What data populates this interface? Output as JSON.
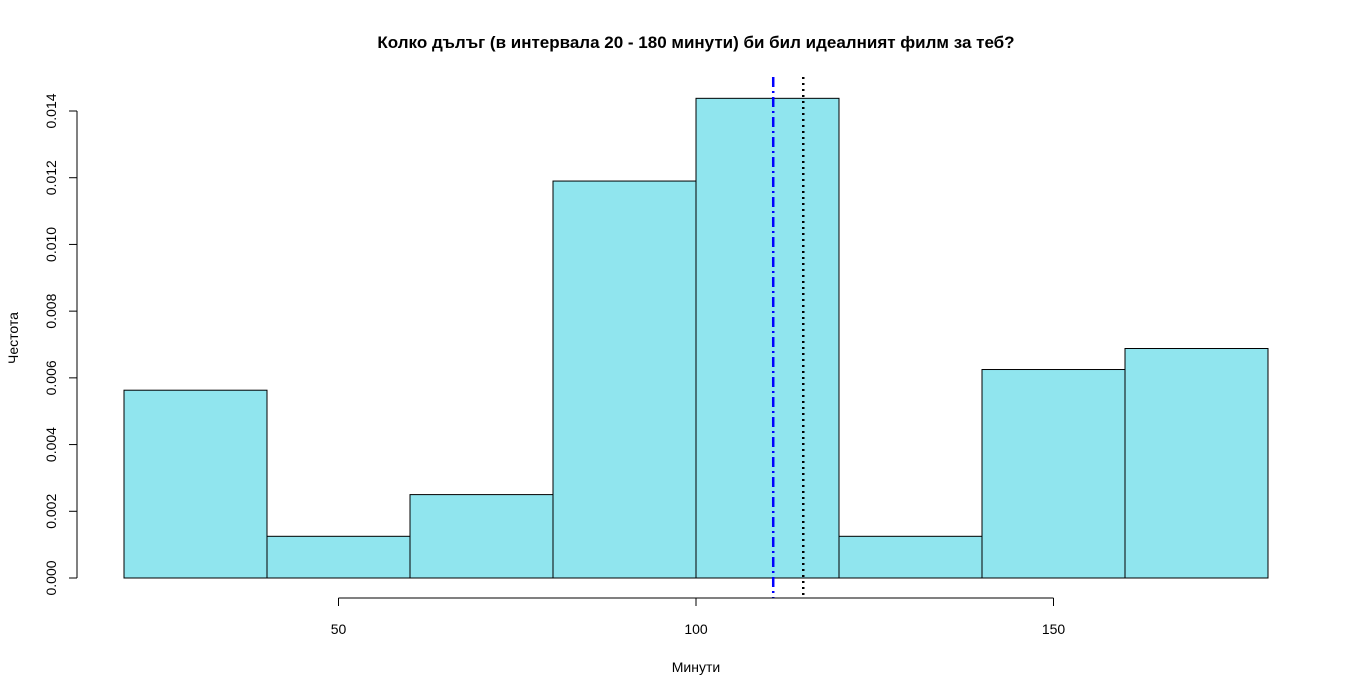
{
  "chart_data": {
    "type": "bar",
    "subtype": "histogram",
    "title": "Колко дълъг (в интервала 20 - 180 минути) би бил идеалният филм за теб?",
    "xlabel": "Минути",
    "ylabel": "Честота",
    "bins": [
      {
        "start": 20,
        "end": 40,
        "value": 0.00563
      },
      {
        "start": 40,
        "end": 60,
        "value": 0.00125
      },
      {
        "start": 60,
        "end": 80,
        "value": 0.0025
      },
      {
        "start": 80,
        "end": 100,
        "value": 0.0119
      },
      {
        "start": 100,
        "end": 120,
        "value": 0.01438
      },
      {
        "start": 120,
        "end": 140,
        "value": 0.00125
      },
      {
        "start": 140,
        "end": 160,
        "value": 0.00625
      },
      {
        "start": 160,
        "end": 180,
        "value": 0.00688
      }
    ],
    "xlim": [
      20,
      180
    ],
    "ylim": [
      0,
      0.014
    ],
    "x_ticks": [
      50,
      100,
      150
    ],
    "y_ticks": [
      "0.000",
      "0.002",
      "0.004",
      "0.006",
      "0.008",
      "0.010",
      "0.012",
      "0.014"
    ],
    "vlines": [
      {
        "x": 110.8,
        "color": "#0000ff",
        "style": "dot-dash"
      },
      {
        "x": 115,
        "color": "#000000",
        "style": "dotted"
      }
    ],
    "bar_fill": "#90e5ee",
    "bar_stroke": "#000000",
    "grid": false
  }
}
